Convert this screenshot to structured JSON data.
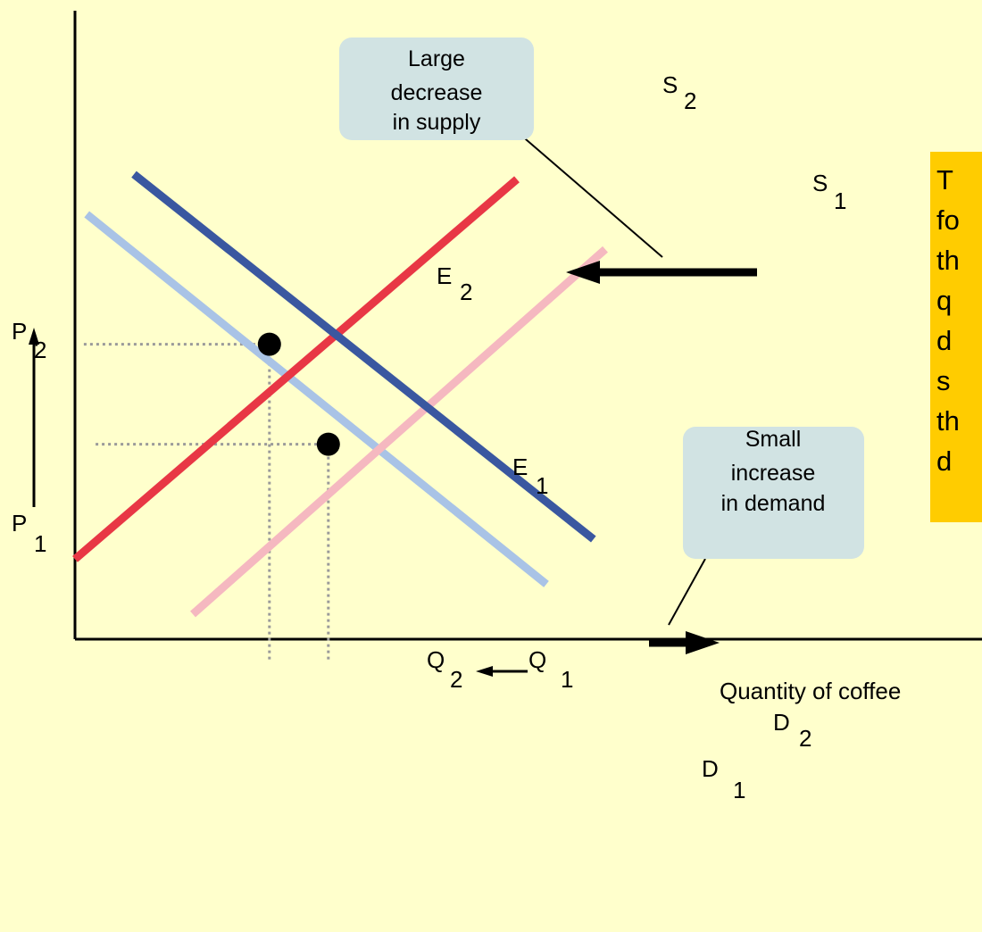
{
  "chart_data": {
    "type": "line",
    "title": "",
    "xlabel": "Quantity of coffee",
    "ylabel": "",
    "series": [
      {
        "name": "S1",
        "label": "S",
        "sub": "1",
        "color": "#f5b8c0",
        "points": [
          [
            2.0,
            0.5
          ],
          [
            9.0,
            7.8
          ]
        ]
      },
      {
        "name": "S2",
        "label": "S",
        "sub": "2",
        "color": "#e83745",
        "points": [
          [
            0.0,
            1.6
          ],
          [
            7.5,
            9.2
          ]
        ]
      },
      {
        "name": "D1",
        "label": "D",
        "sub": "1",
        "color": "#a9c3e6",
        "points": [
          [
            0.2,
            8.5
          ],
          [
            8.0,
            1.1
          ]
        ]
      },
      {
        "name": "D2",
        "label": "D",
        "sub": "2",
        "color": "#3a57a0",
        "points": [
          [
            1.0,
            9.3
          ],
          [
            8.8,
            2.0
          ]
        ]
      }
    ],
    "equilibria": [
      {
        "name": "E1",
        "label": "E",
        "sub": "1",
        "point": [
          4.3,
          3.9
        ]
      },
      {
        "name": "E2",
        "label": "E",
        "sub": "2",
        "point": [
          3.3,
          5.9
        ]
      }
    ],
    "axis_labels": {
      "p1": {
        "label": "P",
        "sub": "1"
      },
      "p2": {
        "label": "P",
        "sub": "2"
      },
      "q1": {
        "label": "Q",
        "sub": "1"
      },
      "q2": {
        "label": "Q",
        "sub": "2"
      }
    },
    "callouts": [
      {
        "name": "large-decrease-callout",
        "lines": [
          "Large",
          "decrease",
          "in supply"
        ]
      },
      {
        "name": "small-increase-callout",
        "lines": [
          "Small",
          "increase",
          "in demand"
        ]
      }
    ],
    "note": {
      "color": "#ffcc00",
      "lines": [
        "T",
        "fo",
        "th",
        "q",
        "d",
        "s",
        "th",
        "d"
      ]
    },
    "xlim": [
      -1.0,
      11.0
    ],
    "ylim": [
      -1.5,
      10.5
    ],
    "grid": false,
    "legend": "none"
  }
}
